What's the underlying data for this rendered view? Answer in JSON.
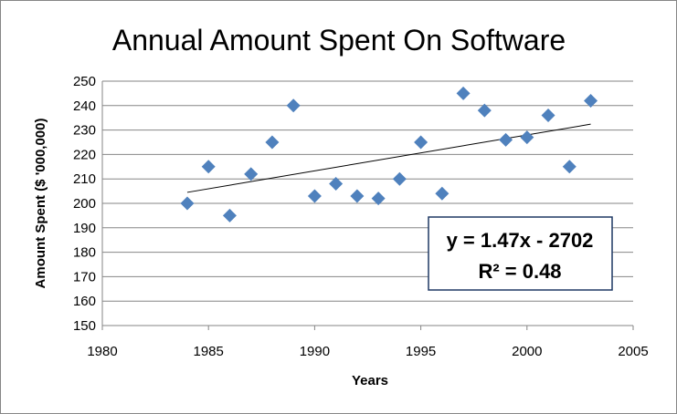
{
  "chart_data": {
    "type": "scatter",
    "title": "Annual Amount Spent On Software",
    "xlabel": "Years",
    "ylabel": "Amount Spent ($ '000,000)",
    "xlim": [
      1980,
      2005
    ],
    "ylim": [
      150,
      250
    ],
    "xticks": [
      1980,
      1985,
      1990,
      1995,
      2000,
      2005
    ],
    "yticks": [
      150,
      160,
      170,
      180,
      190,
      200,
      210,
      220,
      230,
      240,
      250
    ],
    "grid": "horizontal",
    "marker_color": "#4F81BD",
    "series": [
      {
        "name": "Amount Spent",
        "x": [
          1984,
          1985,
          1986,
          1987,
          1988,
          1989,
          1990,
          1991,
          1992,
          1993,
          1994,
          1995,
          1996,
          1997,
          1998,
          1999,
          2000,
          2001,
          2002,
          2003
        ],
        "y": [
          200,
          215,
          195,
          212,
          225,
          240,
          203,
          208,
          203,
          202,
          210,
          225,
          204,
          245,
          238,
          226,
          227,
          236,
          215,
          242
        ]
      }
    ],
    "trendline": {
      "type": "linear",
      "x_range": [
        1984,
        2003
      ],
      "y_start": 204.5,
      "y_end": 232.4,
      "equation": "y = 1.47x - 2702",
      "r_squared_label": "R² = 0.48"
    }
  }
}
